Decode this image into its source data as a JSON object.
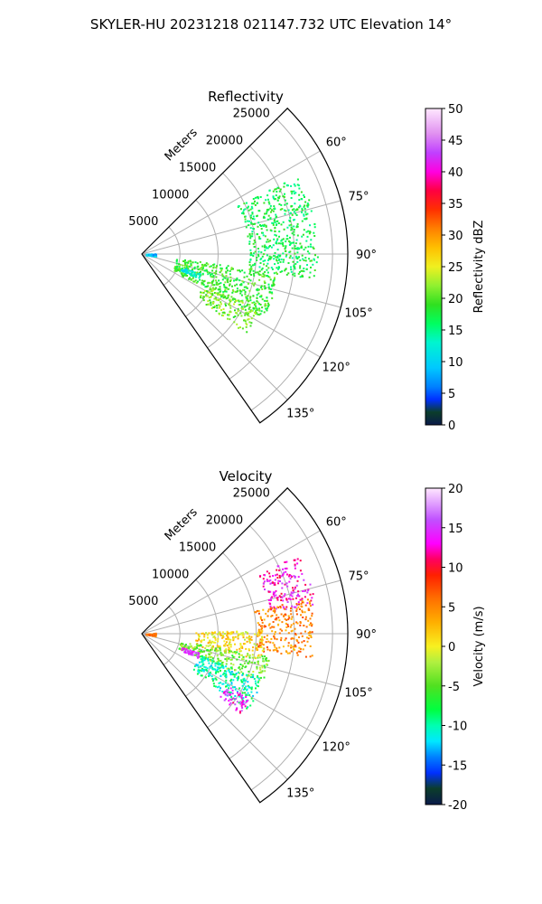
{
  "figure": {
    "title": "SKYLER-HU  20231218  021147.732 UTC Elevation 14°"
  },
  "chart_data": [
    {
      "type": "heatmap",
      "projection": "polar-sector",
      "title": "Reflectivity",
      "radial_label": "Meters",
      "radial_ticks": [
        5000,
        10000,
        15000,
        20000,
        25000
      ],
      "angle_ticks": [
        60,
        75,
        90,
        105,
        120,
        135
      ],
      "angle_tick_labels": [
        "60°",
        "75°",
        "90°",
        "105°",
        "120°",
        "135°"
      ],
      "rlim": [
        0,
        27000
      ],
      "thetalim_deg": [
        45,
        145
      ],
      "grid": true,
      "colorbar": {
        "label": "Reflectivity dBZ",
        "range": [
          0,
          50
        ],
        "ticks": [
          0,
          5,
          10,
          15,
          20,
          25,
          30,
          35,
          40,
          45,
          50
        ],
        "stops": [
          [
            0,
            "#0a1a4a"
          ],
          [
            2,
            "#0b3d2a"
          ],
          [
            4,
            "#0030ff"
          ],
          [
            6,
            "#0080ff"
          ],
          [
            9,
            "#00c8ff"
          ],
          [
            13,
            "#00f5d0"
          ],
          [
            16,
            "#00ff60"
          ],
          [
            19,
            "#30e020"
          ],
          [
            22,
            "#90f030"
          ],
          [
            25,
            "#f0f020"
          ],
          [
            28,
            "#ffc000"
          ],
          [
            31,
            "#ff8000"
          ],
          [
            34,
            "#ff3000"
          ],
          [
            37,
            "#ff0040"
          ],
          [
            40,
            "#ff00e0"
          ],
          [
            43,
            "#c040ff"
          ],
          [
            46,
            "#e090f0"
          ],
          [
            50,
            "#ffe8ff"
          ]
        ]
      },
      "echo_regions": [
        {
          "theta": [
            63,
            98
          ],
          "r": [
            14000,
            23000
          ],
          "value": 17
        },
        {
          "theta": [
            97,
            118
          ],
          "r": [
            4500,
            18000
          ],
          "value": 19
        },
        {
          "theta": [
            115,
            128
          ],
          "r": [
            9000,
            17000
          ],
          "value": 21
        },
        {
          "theta": [
            108,
            113
          ],
          "r": [
            5500,
            8000
          ],
          "value": 12
        },
        {
          "theta": [
            85,
            99
          ],
          "r": [
            500,
            1800
          ],
          "value": 9
        }
      ]
    },
    {
      "type": "heatmap",
      "projection": "polar-sector",
      "title": "Velocity",
      "radial_label": "Meters",
      "radial_ticks": [
        5000,
        10000,
        15000,
        20000,
        25000
      ],
      "angle_ticks": [
        60,
        75,
        90,
        105,
        120,
        135
      ],
      "angle_tick_labels": [
        "60°",
        "75°",
        "90°",
        "105°",
        "120°",
        "135°"
      ],
      "rlim": [
        0,
        27000
      ],
      "thetalim_deg": [
        45,
        145
      ],
      "grid": true,
      "colorbar": {
        "label": "Velocity (m/s)",
        "range": [
          -20,
          20
        ],
        "ticks": [
          -20,
          -15,
          -10,
          -5,
          0,
          5,
          10,
          15,
          20
        ],
        "stops": [
          [
            -20,
            "#0a1a4a"
          ],
          [
            -18,
            "#0b3d2a"
          ],
          [
            -16,
            "#0030ff"
          ],
          [
            -14,
            "#0080ff"
          ],
          [
            -12,
            "#00e8ff"
          ],
          [
            -10,
            "#00ffb0"
          ],
          [
            -8,
            "#00ff40"
          ],
          [
            -5,
            "#50e020"
          ],
          [
            -2,
            "#b0f040"
          ],
          [
            0,
            "#f8f020"
          ],
          [
            3,
            "#ffb000"
          ],
          [
            6,
            "#ff7000"
          ],
          [
            9,
            "#ff2000"
          ],
          [
            11,
            "#ff0060"
          ],
          [
            13,
            "#ff00ff"
          ],
          [
            16,
            "#c050ff"
          ],
          [
            20,
            "#ffe8ff"
          ]
        ]
      },
      "echo_regions": [
        {
          "theta": [
            63,
            80
          ],
          "r": [
            17000,
            23000
          ],
          "value": 13
        },
        {
          "theta": [
            78,
            98
          ],
          "r": [
            15000,
            22500
          ],
          "value": 5
        },
        {
          "theta": [
            88,
            102
          ],
          "r": [
            7000,
            16000
          ],
          "value": 1
        },
        {
          "theta": [
            100,
            112
          ],
          "r": [
            5000,
            17000
          ],
          "value": -4
        },
        {
          "theta": [
            110,
            126
          ],
          "r": [
            8000,
            17000
          ],
          "value": -10
        },
        {
          "theta": [
            121,
            129
          ],
          "r": [
            13000,
            16500
          ],
          "value": 14
        },
        {
          "theta": [
            108,
            113
          ],
          "r": [
            5500,
            8000
          ],
          "value": 15
        },
        {
          "theta": [
            85,
            99
          ],
          "r": [
            500,
            1800
          ],
          "value": 5
        }
      ]
    }
  ]
}
